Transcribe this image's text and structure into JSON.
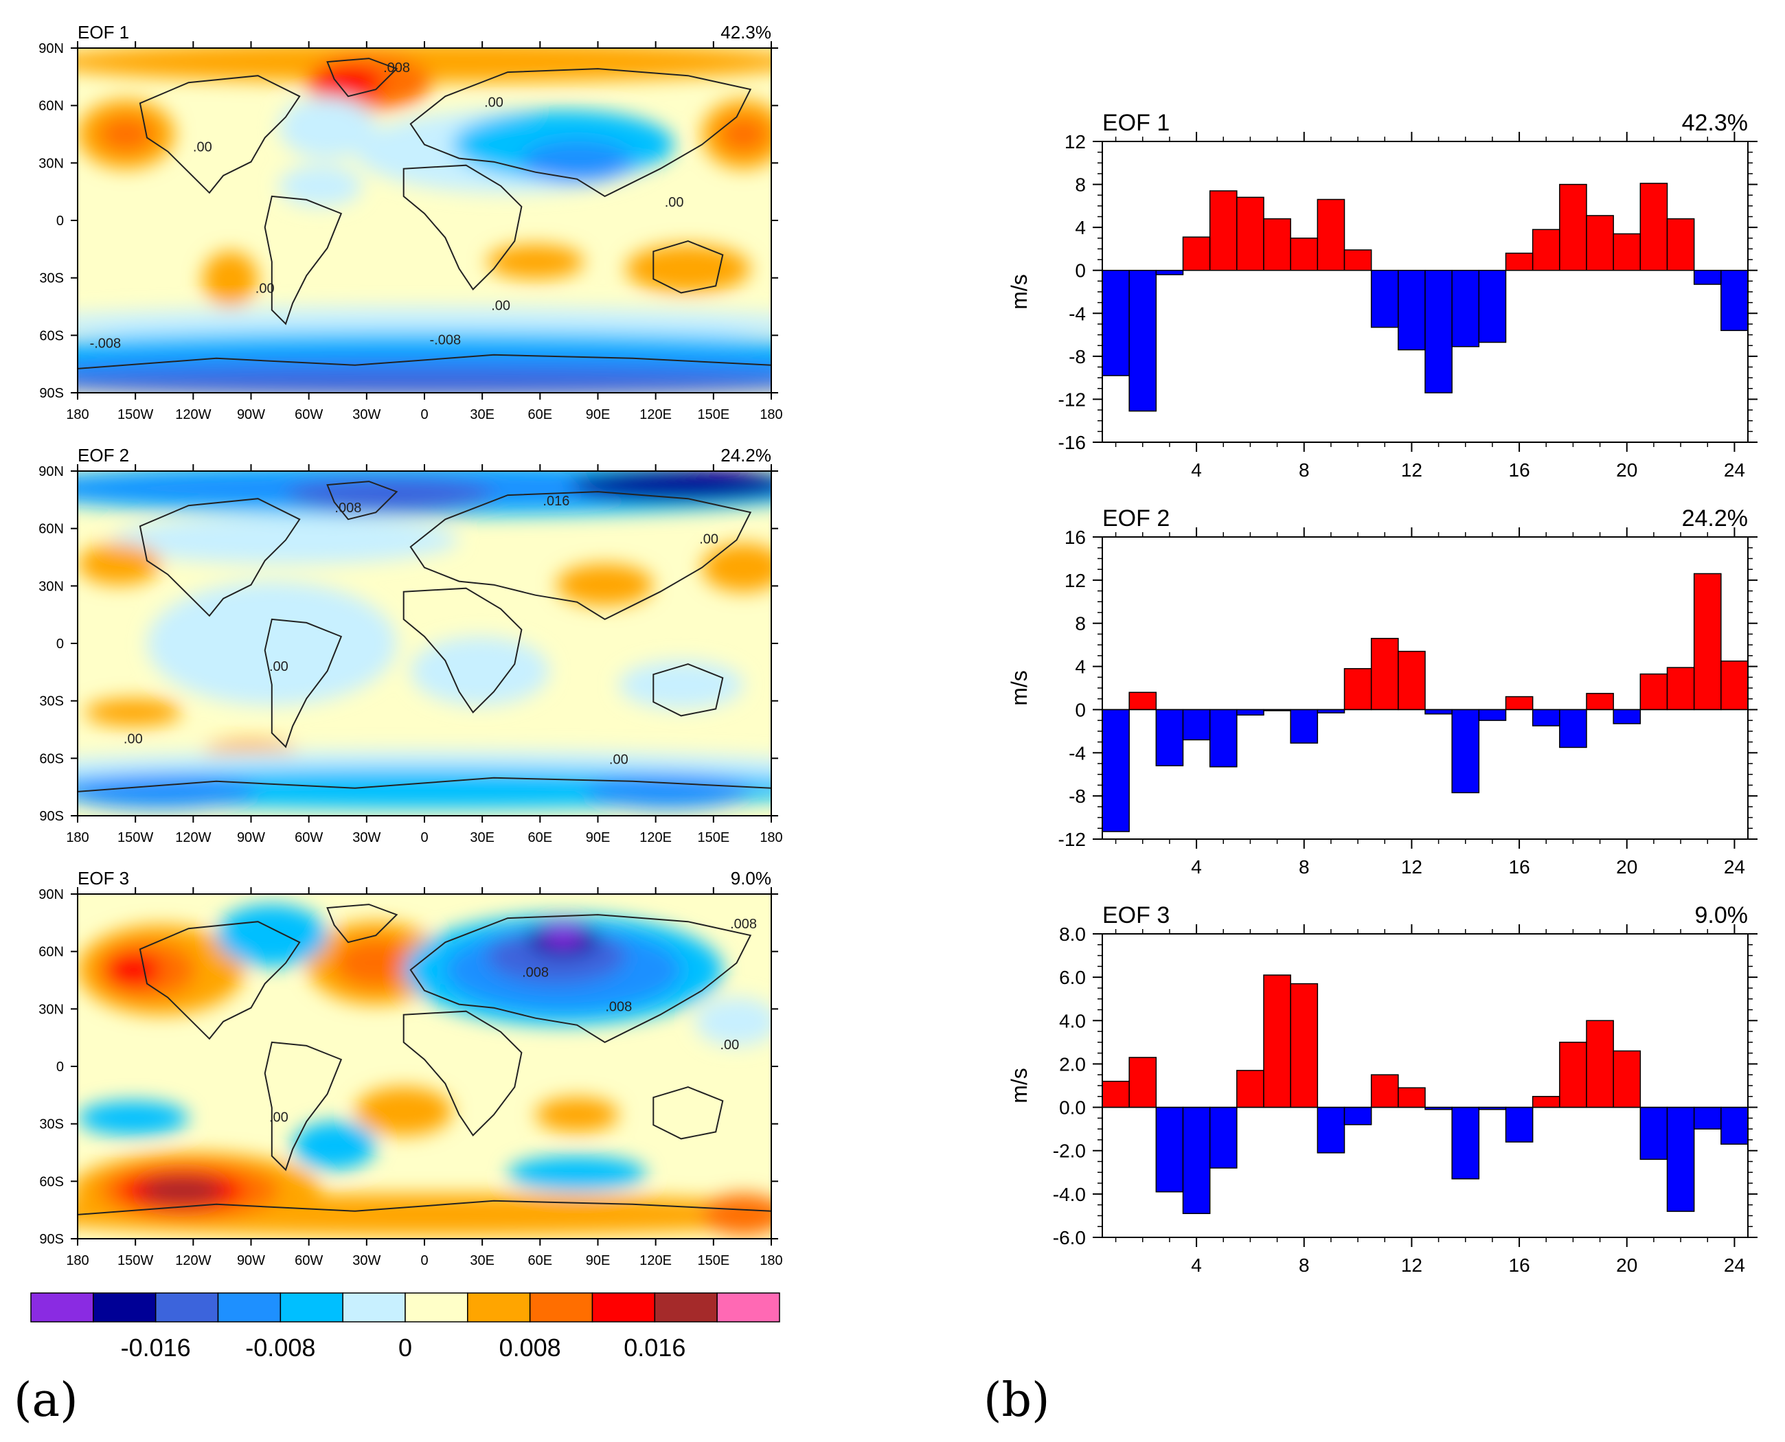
{
  "panel_labels": [
    "(a)",
    "(b)"
  ],
  "colors": {
    "positive": "#ff0000",
    "negative": "#0000ff",
    "map_fill_levels": [
      "#8a2be2",
      "#000096",
      "#3c64dc",
      "#1e90ff",
      "#00bfff",
      "#c8f0ff",
      "#ffffc8",
      "#ffa500",
      "#ff6e00",
      "#ff0000",
      "#a52a2a",
      "#ff69b4"
    ]
  },
  "chart_data": [
    {
      "type": "heatmap",
      "panel": "a",
      "title": "EOF 1",
      "variance": "42.3%",
      "contour_labels": [
        ".008",
        ".00",
        ".00",
        ".00",
        ".00",
        ".00",
        "-.008",
        "-.008"
      ],
      "x_ticks": [
        "180",
        "150W",
        "120W",
        "90W",
        "60W",
        "30W",
        "0",
        "30E",
        "60E",
        "90E",
        "120E",
        "150E",
        "180"
      ],
      "y_ticks": [
        "90N",
        "60N",
        "30N",
        "0",
        "30S",
        "60S",
        "90S"
      ],
      "xlim": [
        -180,
        180
      ],
      "ylim": [
        -90,
        90
      ]
    },
    {
      "type": "heatmap",
      "panel": "a",
      "title": "EOF 2",
      "variance": "24.2%",
      "contour_labels": [
        ".008",
        ".016",
        ".00",
        ".00",
        ".00",
        ".00"
      ],
      "x_ticks": [
        "180",
        "150W",
        "120W",
        "90W",
        "60W",
        "30W",
        "0",
        "30E",
        "60E",
        "90E",
        "120E",
        "150E",
        "180"
      ],
      "y_ticks": [
        "90N",
        "60N",
        "30N",
        "0",
        "30S",
        "60S",
        "90S"
      ],
      "xlim": [
        -180,
        180
      ],
      "ylim": [
        -90,
        90
      ]
    },
    {
      "type": "heatmap",
      "panel": "a",
      "title": "EOF 3",
      "variance": "9.0%",
      "contour_labels": [
        ".008",
        ".008",
        ".008",
        ".00",
        ".00"
      ],
      "x_ticks": [
        "180",
        "150W",
        "120W",
        "90W",
        "60W",
        "30W",
        "0",
        "30E",
        "60E",
        "90E",
        "120E",
        "150E",
        "180"
      ],
      "y_ticks": [
        "90N",
        "60N",
        "30N",
        "0",
        "30S",
        "60S",
        "90S"
      ],
      "xlim": [
        -180,
        180
      ],
      "ylim": [
        -90,
        90
      ]
    },
    {
      "type": "bar",
      "panel": "b",
      "title": "EOF 1",
      "variance": "42.3%",
      "ylabel": "m/s",
      "ylim": [
        -16,
        12
      ],
      "yticks": [
        12,
        8,
        4,
        0,
        -4,
        -8,
        -12,
        -16
      ],
      "ytick_labels": [
        "12",
        "8",
        "4",
        "0",
        "-4",
        "-8",
        "-12",
        "-16"
      ],
      "x": [
        1,
        2,
        3,
        4,
        5,
        6,
        7,
        8,
        9,
        10,
        11,
        12,
        13,
        14,
        15,
        16,
        17,
        18,
        19,
        20,
        21,
        22,
        23,
        24
      ],
      "xlim": [
        0.5,
        24.5
      ],
      "xticks": [
        "4",
        "8",
        "12",
        "16",
        "20",
        "24"
      ],
      "values": [
        -9.8,
        -13.1,
        -0.4,
        3.1,
        7.4,
        6.8,
        4.8,
        3.0,
        6.6,
        1.9,
        -5.3,
        -7.4,
        -11.4,
        -7.1,
        -6.7,
        1.6,
        3.8,
        8.0,
        5.1,
        3.4,
        8.1,
        4.8,
        -1.3,
        -5.6
      ]
    },
    {
      "type": "bar",
      "panel": "b",
      "title": "EOF 2",
      "variance": "24.2%",
      "ylabel": "m/s",
      "ylim": [
        -12,
        16
      ],
      "yticks": [
        16,
        12,
        8,
        4,
        0,
        -4,
        -8,
        -12
      ],
      "ytick_labels": [
        "16",
        "12",
        "8",
        "4",
        "0",
        "-4",
        "-8",
        "-12"
      ],
      "x": [
        1,
        2,
        3,
        4,
        5,
        6,
        7,
        8,
        9,
        10,
        11,
        12,
        13,
        14,
        15,
        16,
        17,
        18,
        19,
        20,
        21,
        22,
        23,
        24
      ],
      "xlim": [
        0.5,
        24.5
      ],
      "xticks": [
        "4",
        "8",
        "12",
        "16",
        "20",
        "24"
      ],
      "values": [
        -11.3,
        1.6,
        -5.2,
        -2.8,
        -5.3,
        -0.5,
        -0.1,
        -3.1,
        -0.3,
        3.8,
        6.6,
        5.4,
        -0.4,
        -7.7,
        -1.0,
        1.2,
        -1.5,
        -3.5,
        1.5,
        -1.3,
        3.3,
        3.9,
        12.6,
        4.5
      ]
    },
    {
      "type": "bar",
      "panel": "b",
      "title": "EOF 3",
      "variance": "9.0%",
      "ylabel": "m/s",
      "ylim": [
        -6,
        8
      ],
      "yticks": [
        8,
        6,
        4,
        2,
        0,
        -2,
        -4,
        -6
      ],
      "ytick_labels": [
        "8.0",
        "6.0",
        "4.0",
        "2.0",
        "0.0",
        "-2.0",
        "-4.0",
        "-6.0"
      ],
      "x": [
        1,
        2,
        3,
        4,
        5,
        6,
        7,
        8,
        9,
        10,
        11,
        12,
        13,
        14,
        15,
        16,
        17,
        18,
        19,
        20,
        21,
        22,
        23,
        24
      ],
      "xlim": [
        0.5,
        24.5
      ],
      "xticks": [
        "4",
        "8",
        "12",
        "16",
        "20",
        "24"
      ],
      "values": [
        1.2,
        2.3,
        -3.9,
        -4.9,
        -2.8,
        1.7,
        6.1,
        5.7,
        -2.1,
        -0.8,
        1.5,
        0.9,
        -0.1,
        -3.3,
        -0.1,
        -1.6,
        0.5,
        3.0,
        4.0,
        2.6,
        -2.4,
        -4.8,
        -1.0,
        -1.7
      ]
    }
  ],
  "colorbar": {
    "tick_labels": [
      "-0.016",
      "-0.008",
      "0",
      "0.008",
      "0.016"
    ],
    "colors": [
      "#8a2be2",
      "#000096",
      "#3c64dc",
      "#1e90ff",
      "#00bfff",
      "#c8f0ff",
      "#ffffc8",
      "#ffa500",
      "#ff6e00",
      "#ff0000",
      "#a52a2a",
      "#ff69b4"
    ]
  }
}
